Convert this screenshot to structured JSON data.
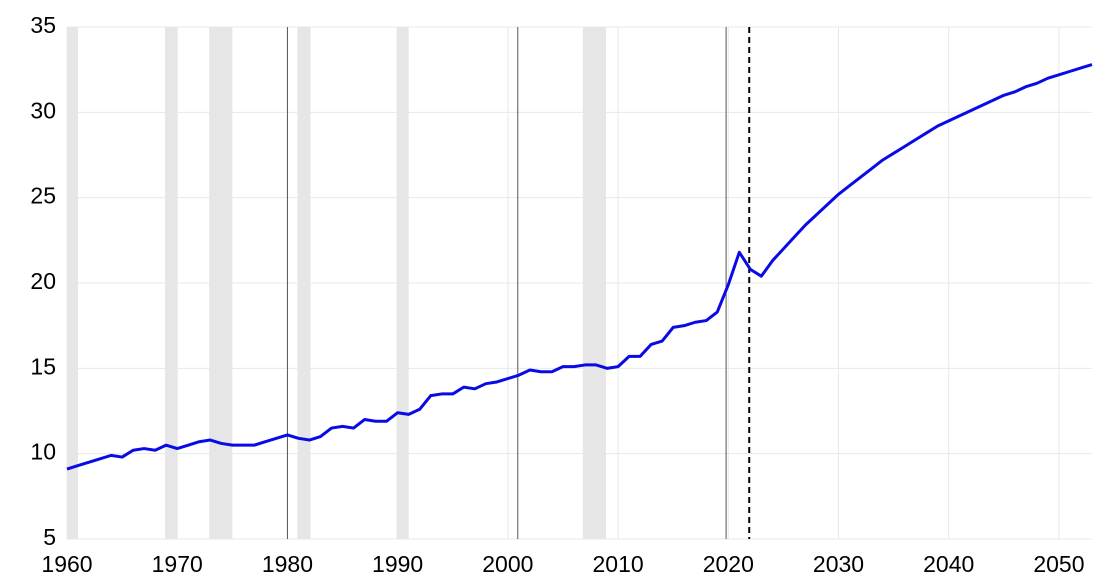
{
  "chart_data": {
    "type": "line",
    "x": [
      1960,
      1961,
      1962,
      1963,
      1964,
      1965,
      1966,
      1967,
      1968,
      1969,
      1970,
      1971,
      1972,
      1973,
      1974,
      1975,
      1976,
      1977,
      1978,
      1979,
      1980,
      1981,
      1982,
      1983,
      1984,
      1985,
      1986,
      1987,
      1988,
      1989,
      1990,
      1991,
      1992,
      1993,
      1994,
      1995,
      1996,
      1997,
      1998,
      1999,
      2000,
      2001,
      2002,
      2003,
      2004,
      2005,
      2006,
      2007,
      2008,
      2009,
      2010,
      2011,
      2012,
      2013,
      2014,
      2015,
      2016,
      2017,
      2018,
      2019,
      2020,
      2021,
      2022,
      2023,
      2024,
      2025,
      2026,
      2027,
      2028,
      2029,
      2030,
      2031,
      2032,
      2033,
      2034,
      2035,
      2036,
      2037,
      2038,
      2039,
      2040,
      2041,
      2042,
      2043,
      2044,
      2045,
      2046,
      2047,
      2048,
      2049,
      2050,
      2051,
      2052,
      2053
    ],
    "series": [
      {
        "color": "#0a0ae6",
        "values": [
          9.1,
          9.3,
          9.5,
          9.7,
          9.9,
          9.8,
          10.2,
          10.3,
          10.2,
          10.5,
          10.3,
          10.5,
          10.7,
          10.8,
          10.6,
          10.5,
          10.5,
          10.5,
          10.7,
          10.9,
          11.1,
          10.9,
          10.8,
          11.0,
          11.5,
          11.6,
          11.5,
          12.0,
          11.9,
          11.9,
          12.4,
          12.3,
          12.6,
          13.4,
          13.5,
          13.5,
          13.9,
          13.8,
          14.1,
          14.2,
          14.4,
          14.6,
          14.9,
          14.8,
          14.8,
          15.1,
          15.1,
          15.2,
          15.2,
          15.0,
          15.1,
          15.7,
          15.7,
          16.4,
          16.6,
          17.4,
          17.5,
          17.7,
          17.8,
          18.3,
          19.9,
          21.8,
          20.8,
          20.4,
          21.3,
          22.0,
          22.7,
          23.4,
          24.0,
          24.6,
          25.2,
          25.7,
          26.2,
          26.7,
          27.2,
          27.6,
          28.0,
          28.4,
          28.8,
          29.2,
          29.5,
          29.8,
          30.1,
          30.4,
          30.7,
          31.0,
          31.2,
          31.5,
          31.7,
          32.0,
          32.2,
          32.4,
          32.6,
          32.8
        ]
      }
    ],
    "shaded_periods": [
      [
        1960.0,
        1961.0
      ],
      [
        1968.9,
        1970.0
      ],
      [
        1972.9,
        1975.0
      ],
      [
        1980.9,
        1982.1
      ],
      [
        1989.9,
        1991.0
      ],
      [
        2006.8,
        2008.9
      ]
    ],
    "shade_color": "#e6e6e6",
    "vertical_lines": [
      1980.0,
      2000.9,
      2019.8
    ],
    "forecast_start": 2021.9,
    "xlim": [
      1960,
      2053
    ],
    "xticks": [
      1960,
      1970,
      1980,
      1990,
      2000,
      2010,
      2020,
      2030,
      2040,
      2050
    ],
    "ylim": [
      5,
      35
    ],
    "yticks": [
      5,
      10,
      15,
      20,
      25,
      30,
      35
    ],
    "grid": true
  }
}
